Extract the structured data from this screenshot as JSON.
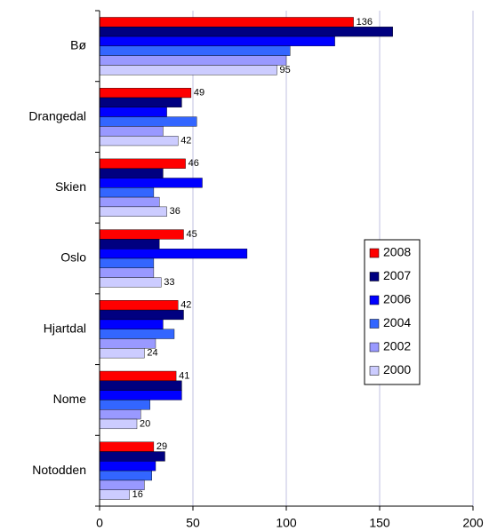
{
  "chart_data": {
    "type": "hbar",
    "categories": [
      "Bø",
      "Drangedal",
      "Skien",
      "Oslo",
      "Hjartdal",
      "Nome",
      "Notodden"
    ],
    "series": [
      {
        "name": "2008",
        "color": "#ff0000",
        "show_labels": true,
        "values": [
          136,
          49,
          46,
          45,
          42,
          41,
          29
        ]
      },
      {
        "name": "2007",
        "color": "#000080",
        "show_labels": false,
        "values": [
          157,
          44,
          34,
          32,
          45,
          44,
          35
        ]
      },
      {
        "name": "2006",
        "color": "#0000ff",
        "show_labels": false,
        "values": [
          126,
          36,
          55,
          79,
          34,
          44,
          30
        ]
      },
      {
        "name": "2004",
        "color": "#3366ff",
        "show_labels": false,
        "values": [
          102,
          52,
          29,
          29,
          40,
          27,
          28
        ]
      },
      {
        "name": "2002",
        "color": "#9999ff",
        "show_labels": false,
        "values": [
          100,
          34,
          32,
          29,
          30,
          22,
          24
        ]
      },
      {
        "name": "2000",
        "color": "#ccccff",
        "show_labels": true,
        "values": [
          95,
          42,
          36,
          33,
          24,
          20,
          16
        ]
      }
    ],
    "xlim": [
      0,
      200
    ],
    "xticks": [
      0,
      50,
      100,
      150,
      200
    ],
    "grid": true,
    "legend": "right"
  }
}
